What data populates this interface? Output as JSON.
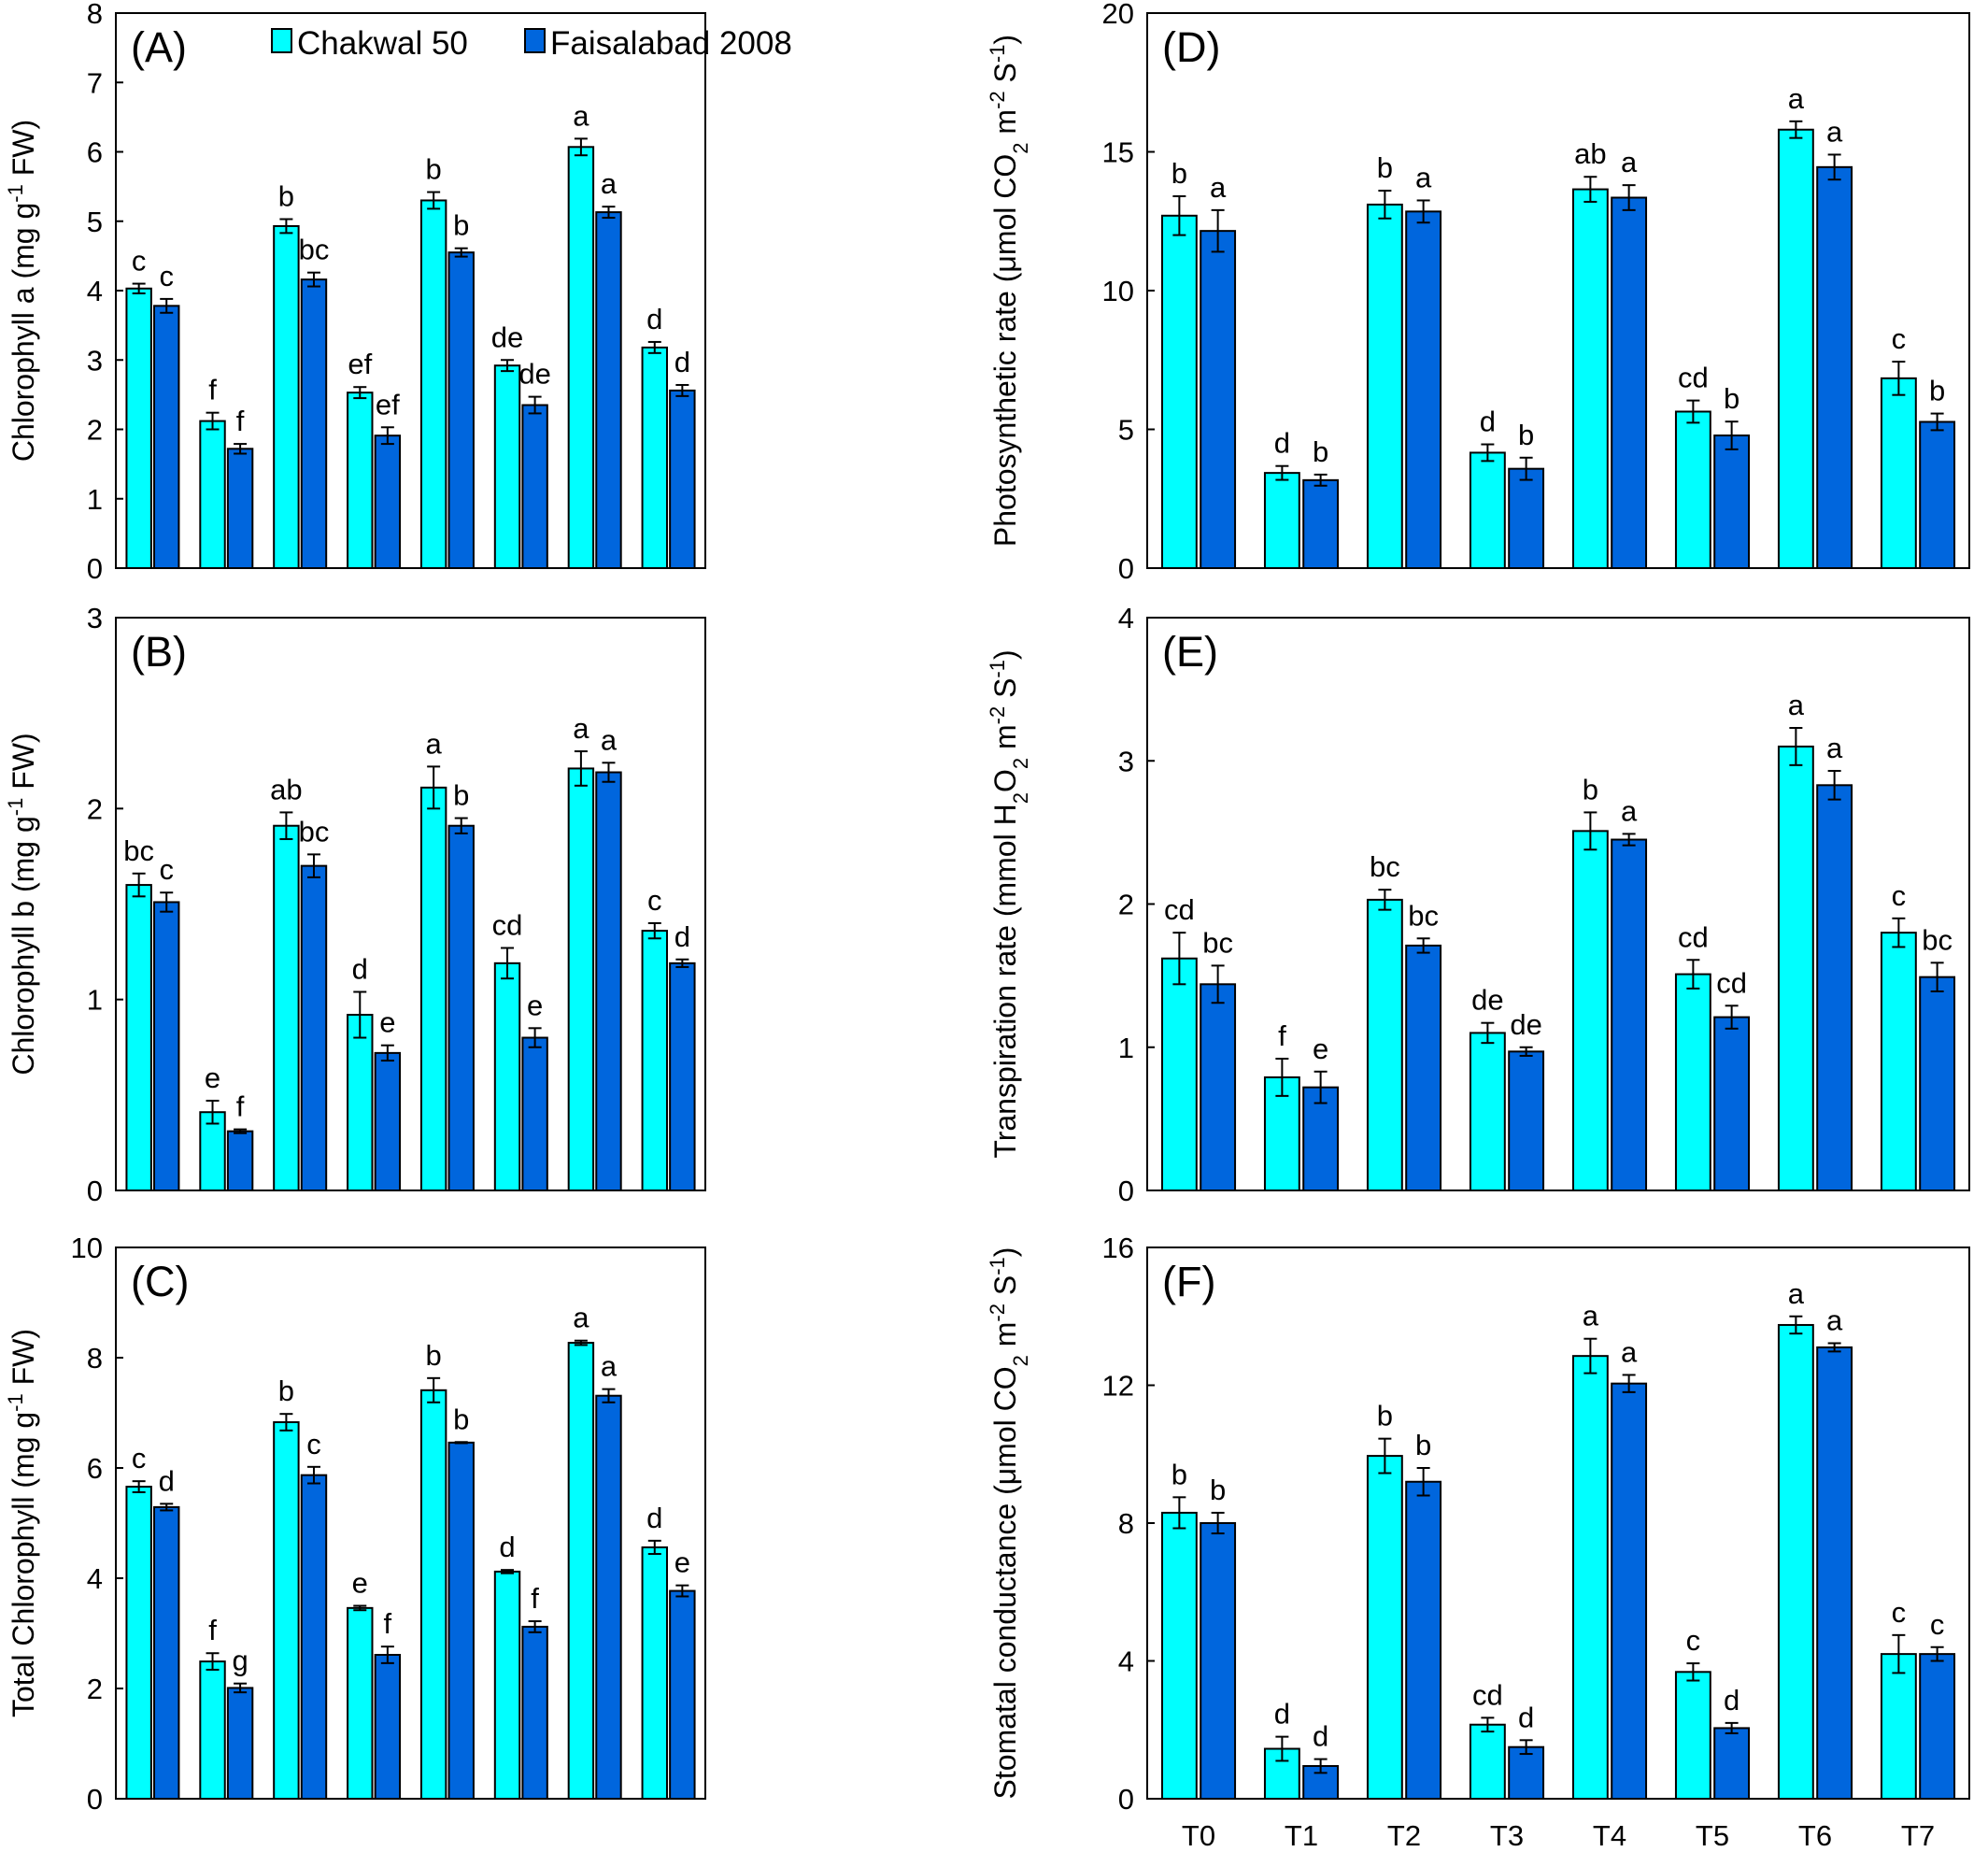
{
  "legend": {
    "items": [
      {
        "label": "Chakwal 50",
        "color": "#00FFFF"
      },
      {
        "label": "Faisalabad 2008",
        "color": "#0066DD"
      }
    ]
  },
  "chart_data": [
    {
      "panel": "(A)",
      "type": "bar",
      "categories": [
        "T0",
        "T1",
        "T2",
        "T3",
        "T4",
        "T5",
        "T6",
        "T7"
      ],
      "ylabel": "Chlorophyll a (mg g-1 FW)",
      "ylim": [
        0,
        8
      ],
      "yticks": [
        0,
        1,
        2,
        3,
        4,
        5,
        6,
        7,
        8
      ],
      "series": [
        {
          "name": "Chakwal 50",
          "values": [
            4.03,
            2.12,
            4.93,
            2.53,
            5.3,
            2.92,
            6.07,
            3.18
          ],
          "errors": [
            0.07,
            0.12,
            0.1,
            0.08,
            0.12,
            0.08,
            0.12,
            0.08
          ],
          "labels": [
            "c",
            "f",
            "b",
            "ef",
            "b",
            "de",
            "a",
            "d"
          ]
        },
        {
          "name": "Faisalabad 2008",
          "values": [
            3.78,
            1.72,
            4.16,
            1.91,
            4.55,
            2.35,
            5.13,
            2.56
          ],
          "errors": [
            0.1,
            0.07,
            0.1,
            0.12,
            0.06,
            0.12,
            0.08,
            0.08
          ],
          "labels": [
            "c",
            "f",
            "bc",
            "ef",
            "b",
            "de",
            "a",
            "d"
          ]
        }
      ]
    },
    {
      "panel": "(B)",
      "type": "bar",
      "categories": [
        "T0",
        "T1",
        "T2",
        "T3",
        "T4",
        "T5",
        "T6",
        "T7"
      ],
      "ylabel": "Chlorophyll b (mg g-1 FW)",
      "ylim": [
        0,
        3
      ],
      "yticks": [
        0,
        1,
        2,
        3
      ],
      "series": [
        {
          "name": "Chakwal 50",
          "values": [
            1.6,
            0.41,
            1.91,
            0.92,
            2.11,
            1.19,
            2.21,
            1.36
          ],
          "errors": [
            0.06,
            0.06,
            0.07,
            0.12,
            0.11,
            0.08,
            0.09,
            0.04
          ],
          "labels": [
            "bc",
            "e",
            "ab",
            "d",
            "a",
            "cd",
            "a",
            "c"
          ]
        },
        {
          "name": "Faisalabad 2008",
          "values": [
            1.51,
            0.31,
            1.7,
            0.72,
            1.91,
            0.8,
            2.19,
            1.19
          ],
          "errors": [
            0.05,
            0.01,
            0.06,
            0.04,
            0.04,
            0.05,
            0.05,
            0.02
          ],
          "labels": [
            "c",
            "f",
            "bc",
            "e",
            "b",
            "e",
            "a",
            "d"
          ]
        }
      ]
    },
    {
      "panel": "(C)",
      "type": "bar",
      "categories": [
        "T0",
        "T1",
        "T2",
        "T3",
        "T4",
        "T5",
        "T6",
        "T7"
      ],
      "ylabel": "Total Chlorophyll  (mg g-1 FW)",
      "ylim": [
        0,
        10
      ],
      "yticks": [
        0,
        2,
        4,
        6,
        8,
        10
      ],
      "series": [
        {
          "name": "Chakwal 50",
          "values": [
            5.66,
            2.49,
            6.83,
            3.46,
            7.41,
            4.12,
            8.27,
            4.56
          ],
          "errors": [
            0.1,
            0.15,
            0.15,
            0.04,
            0.22,
            0.03,
            0.04,
            0.12
          ],
          "labels": [
            "c",
            "f",
            "b",
            "e",
            "b",
            "d",
            "a",
            "d"
          ]
        },
        {
          "name": "Faisalabad 2008",
          "values": [
            5.29,
            2.01,
            5.87,
            2.61,
            6.46,
            3.12,
            7.31,
            3.77
          ],
          "errors": [
            0.06,
            0.08,
            0.15,
            0.15,
            0.01,
            0.1,
            0.12,
            0.1
          ],
          "labels": [
            "d",
            "g",
            "c",
            "f",
            "b",
            "f",
            "a",
            "e"
          ]
        }
      ]
    },
    {
      "panel": "(D)",
      "type": "bar",
      "categories": [
        "T0",
        "T1",
        "T2",
        "T3",
        "T4",
        "T5",
        "T6",
        "T7"
      ],
      "ylabel": "Photosynthetic  rate (μmol CO2 m-2 S-1)",
      "ylim": [
        0,
        20
      ],
      "yticks": [
        0,
        5,
        10,
        15,
        20
      ],
      "series": [
        {
          "name": "Chakwal 50",
          "values": [
            12.7,
            3.43,
            13.1,
            4.16,
            13.65,
            5.64,
            15.8,
            6.84
          ],
          "errors": [
            0.7,
            0.25,
            0.5,
            0.3,
            0.45,
            0.4,
            0.3,
            0.6
          ],
          "labels": [
            "b",
            "d",
            "b",
            "d",
            "ab",
            "cd",
            "a",
            "c"
          ]
        },
        {
          "name": "Faisalabad 2008",
          "values": [
            12.15,
            3.17,
            12.85,
            3.58,
            13.35,
            4.78,
            14.45,
            5.27
          ],
          "errors": [
            0.75,
            0.2,
            0.4,
            0.4,
            0.45,
            0.5,
            0.45,
            0.3
          ],
          "labels": [
            "a",
            "b",
            "a",
            "b",
            "a",
            "b",
            "a",
            "b"
          ]
        }
      ]
    },
    {
      "panel": "(E)",
      "type": "bar",
      "categories": [
        "T0",
        "T1",
        "T2",
        "T3",
        "T4",
        "T5",
        "T6",
        "T7"
      ],
      "ylabel": "Transpiration rate (mmol H2O2 m-2 S-1)",
      "ylim": [
        0,
        4
      ],
      "yticks": [
        0,
        1,
        2,
        3,
        4
      ],
      "series": [
        {
          "name": "Chakwal 50",
          "values": [
            1.62,
            0.79,
            2.03,
            1.1,
            2.51,
            1.51,
            3.1,
            1.8
          ],
          "errors": [
            0.18,
            0.13,
            0.07,
            0.07,
            0.13,
            0.1,
            0.13,
            0.1
          ],
          "labels": [
            "cd",
            "f",
            "bc",
            "de",
            "b",
            "cd",
            "a",
            "c"
          ]
        },
        {
          "name": "Faisalabad 2008",
          "values": [
            1.44,
            0.72,
            1.71,
            0.97,
            2.45,
            1.21,
            2.83,
            1.49
          ],
          "errors": [
            0.13,
            0.11,
            0.05,
            0.03,
            0.04,
            0.08,
            0.1,
            0.1
          ],
          "labels": [
            "bc",
            "e",
            "bc",
            "de",
            "a",
            "cd",
            "a",
            "bc"
          ]
        }
      ]
    },
    {
      "panel": "(F)",
      "type": "bar",
      "categories": [
        "T0",
        "T1",
        "T2",
        "T3",
        "T4",
        "T5",
        "T6",
        "T7"
      ],
      "ylabel": "Stomatal conductance  (μmol CO2 m-2 S-1)",
      "ylim": [
        0,
        16
      ],
      "yticks": [
        0,
        4,
        8,
        12,
        16
      ],
      "series": [
        {
          "name": "Chakwal 50",
          "values": [
            8.3,
            1.45,
            9.95,
            2.15,
            12.85,
            3.68,
            13.75,
            4.2
          ],
          "errors": [
            0.45,
            0.35,
            0.5,
            0.2,
            0.5,
            0.25,
            0.25,
            0.55
          ],
          "labels": [
            "b",
            "d",
            "b",
            "cd",
            "a",
            "c",
            "a",
            "c"
          ]
        },
        {
          "name": "Faisalabad 2008",
          "values": [
            8.0,
            0.95,
            9.2,
            1.5,
            12.05,
            2.05,
            13.1,
            4.2
          ],
          "errors": [
            0.3,
            0.2,
            0.4,
            0.2,
            0.25,
            0.15,
            0.12,
            0.2
          ],
          "labels": [
            "b",
            "d",
            "b",
            "d",
            "a",
            "d",
            "a",
            "c"
          ]
        }
      ]
    }
  ]
}
